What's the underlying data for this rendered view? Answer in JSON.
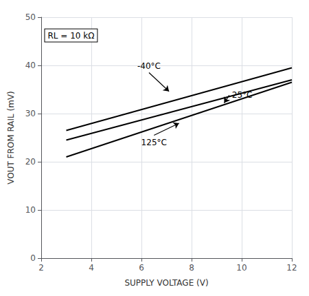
{
  "chart_data": {
    "type": "line",
    "xlabel": "SUPPLY VOLTAGE (V)",
    "ylabel": "VOUT FROM RAIL (mV)",
    "xlim": [
      2,
      12
    ],
    "ylim": [
      0,
      50
    ],
    "xticks": [
      2,
      4,
      6,
      8,
      10,
      12
    ],
    "yticks": [
      0,
      10,
      20,
      30,
      40,
      50
    ],
    "grid": true,
    "x": [
      3,
      12
    ],
    "series": [
      {
        "color": "#000000",
        "values": [
          26.5,
          39.5
        ]
      },
      {
        "color": "#000000",
        "values": [
          24.5,
          37.0
        ]
      },
      {
        "color": "#000000",
        "values": [
          21.0,
          36.5
        ]
      }
    ],
    "annotations": [
      {
        "text": "RL = 10 kΩ",
        "x": 2.15,
        "y": 47.5
      },
      {
        "text": "-40°C",
        "x": 6.3,
        "y": 38.5,
        "arrow_to": [
          7.1,
          34.6
        ]
      },
      {
        "text": "25°C",
        "x": 9.5,
        "y": 33.8,
        "arrow_to": [
          9.3,
          32.2
        ]
      },
      {
        "text": "125°C",
        "x": 6.5,
        "y": 25.5,
        "arrow_to": [
          7.5,
          28.0
        ]
      }
    ]
  }
}
